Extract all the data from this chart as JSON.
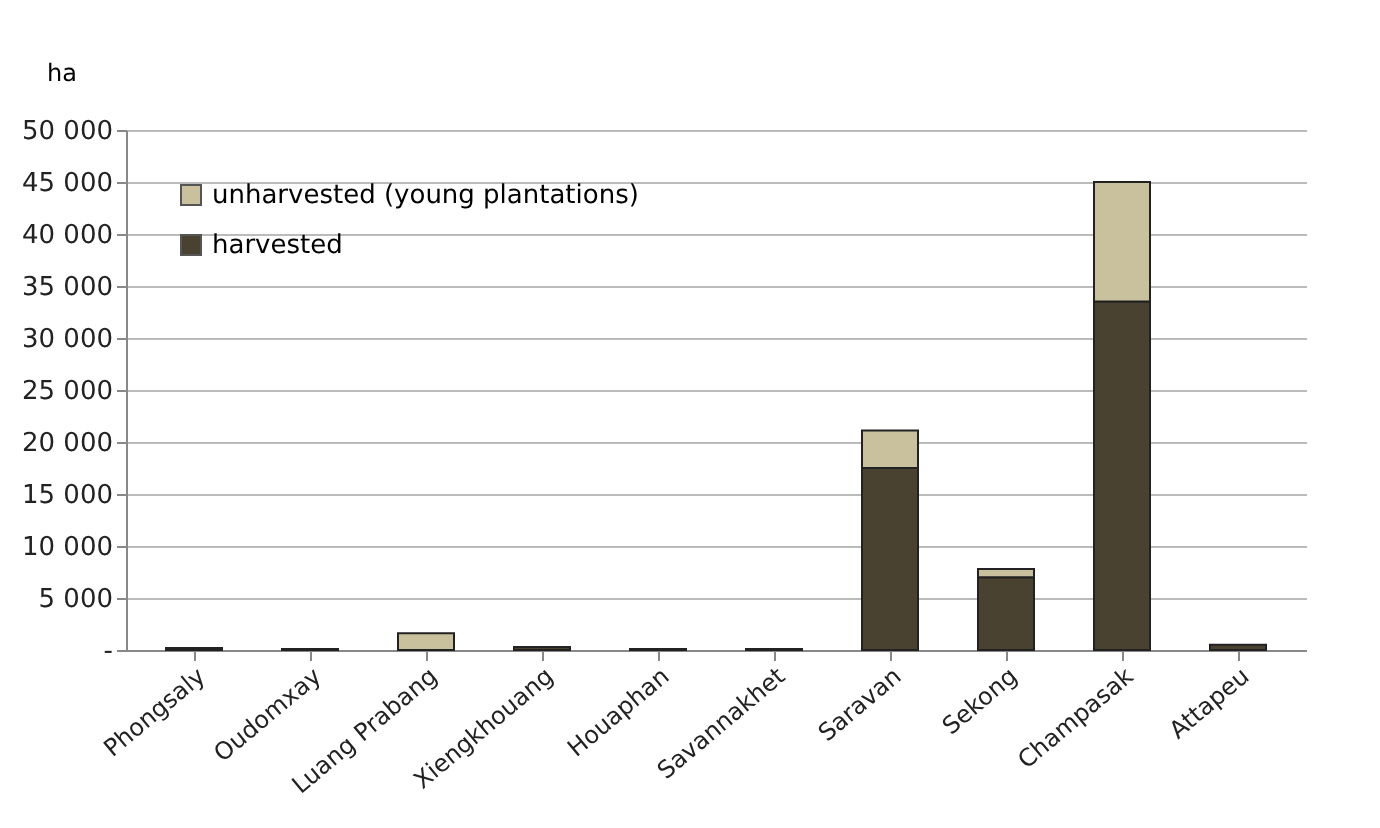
{
  "chart_data": {
    "type": "bar",
    "stacked": true,
    "ylabel": "ha",
    "categories": [
      "Phongsaly",
      "Oudomxay",
      "Luang Prabang",
      "Xiengkhouang",
      "Houaphan",
      "Savannakhet",
      "Saravan",
      "Sekong",
      "Champasak",
      "Attapeu"
    ],
    "series": [
      {
        "name": "harvested",
        "color": "#4a4230",
        "values": [
          null,
          100,
          null,
          300,
          100,
          100,
          17500,
          7000,
          33500,
          500
        ]
      },
      {
        "name": "unharvested (young plantations)",
        "color": "#c9c19e",
        "values": [
          200,
          null,
          1600,
          null,
          null,
          null,
          3600,
          800,
          11500,
          null
        ]
      }
    ],
    "ylim": [
      0,
      50000
    ],
    "yticks": [
      {
        "value": 0,
        "label": "-"
      },
      {
        "value": 5000,
        "label": "5 000"
      },
      {
        "value": 10000,
        "label": "10 000"
      },
      {
        "value": 15000,
        "label": "15 000"
      },
      {
        "value": 20000,
        "label": "20 000"
      },
      {
        "value": 25000,
        "label": "25 000"
      },
      {
        "value": 30000,
        "label": "30 000"
      },
      {
        "value": 35000,
        "label": "35 000"
      },
      {
        "value": 40000,
        "label": "40 000"
      },
      {
        "value": 45000,
        "label": "45 000"
      },
      {
        "value": 50000,
        "label": "50 000"
      }
    ],
    "grid": "y",
    "legend": "top left"
  }
}
